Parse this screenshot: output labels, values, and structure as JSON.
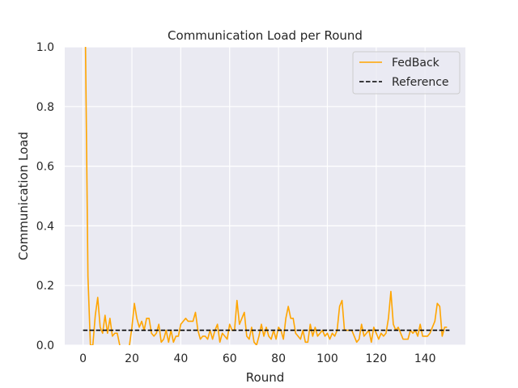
{
  "chart_data": {
    "type": "line",
    "title": "Communication Load per Round",
    "xlabel": "Round",
    "ylabel": "Communication Load",
    "xlim": [
      -7.5,
      156.5
    ],
    "ylim": [
      0,
      1.0
    ],
    "xticks": [
      0,
      20,
      40,
      60,
      80,
      100,
      120,
      140
    ],
    "yticks": [
      0.0,
      0.2,
      0.4,
      0.6,
      0.8,
      1.0
    ],
    "xtick_labels": [
      "0",
      "20",
      "40",
      "60",
      "80",
      "100",
      "120",
      "140"
    ],
    "ytick_labels": [
      "0.0",
      "0.2",
      "0.4",
      "0.6",
      "0.8",
      "1.0"
    ],
    "grid": true,
    "legend_position": "top-right",
    "series": [
      {
        "name": "FedBack",
        "color": "#FFA500",
        "style": "solid",
        "x": [
          1,
          2,
          3,
          4,
          5,
          6,
          7,
          8,
          9,
          10,
          11,
          12,
          13,
          14,
          15,
          16,
          17,
          18,
          19,
          20,
          21,
          22,
          23,
          24,
          25,
          26,
          27,
          28,
          29,
          30,
          31,
          32,
          33,
          34,
          35,
          36,
          37,
          38,
          39,
          40,
          41,
          42,
          43,
          44,
          45,
          46,
          47,
          48,
          49,
          50,
          51,
          52,
          53,
          54,
          55,
          56,
          57,
          58,
          59,
          60,
          61,
          62,
          63,
          64,
          65,
          66,
          67,
          68,
          69,
          70,
          71,
          72,
          73,
          74,
          75,
          76,
          77,
          78,
          79,
          80,
          81,
          82,
          83,
          84,
          85,
          86,
          87,
          88,
          89,
          90,
          91,
          92,
          93,
          94,
          95,
          96,
          97,
          98,
          99,
          100,
          101,
          102,
          103,
          104,
          105,
          106,
          107,
          108,
          109,
          110,
          111,
          112,
          113,
          114,
          115,
          116,
          117,
          118,
          119,
          120,
          121,
          122,
          123,
          124,
          125,
          126,
          127,
          128,
          129,
          130,
          131,
          132,
          133,
          134,
          135,
          136,
          137,
          138,
          139,
          140,
          141,
          142,
          143,
          144,
          145,
          146,
          147,
          148,
          149
        ],
        "values": [
          1.0,
          0.23,
          0.0,
          0.0,
          0.1,
          0.16,
          0.06,
          0.04,
          0.1,
          0.04,
          0.09,
          0.03,
          0.04,
          0.04,
          0.0,
          -0.02,
          -0.01,
          -0.01,
          0.0,
          0.06,
          0.14,
          0.09,
          0.06,
          0.08,
          0.05,
          0.09,
          0.09,
          0.04,
          0.03,
          0.04,
          0.07,
          0.01,
          0.02,
          0.05,
          0.01,
          0.05,
          0.01,
          0.03,
          0.03,
          0.07,
          0.08,
          0.09,
          0.08,
          0.08,
          0.08,
          0.11,
          0.05,
          0.02,
          0.03,
          0.03,
          0.02,
          0.05,
          0.02,
          0.05,
          0.07,
          0.01,
          0.04,
          0.03,
          0.02,
          0.07,
          0.05,
          0.05,
          0.15,
          0.07,
          0.09,
          0.11,
          0.03,
          0.02,
          0.06,
          0.01,
          0.0,
          0.03,
          0.07,
          0.03,
          0.06,
          0.03,
          0.02,
          0.05,
          0.02,
          0.06,
          0.05,
          0.02,
          0.09,
          0.13,
          0.09,
          0.09,
          0.04,
          0.03,
          0.02,
          0.05,
          0.01,
          0.01,
          0.07,
          0.03,
          0.06,
          0.03,
          0.04,
          0.05,
          0.03,
          0.04,
          0.02,
          0.04,
          0.03,
          0.05,
          0.13,
          0.15,
          0.05,
          0.05,
          0.05,
          0.05,
          0.03,
          0.01,
          0.02,
          0.07,
          0.03,
          0.04,
          0.05,
          0.01,
          0.06,
          0.04,
          0.02,
          0.04,
          0.03,
          0.04,
          0.09,
          0.18,
          0.07,
          0.05,
          0.06,
          0.04,
          0.02,
          0.02,
          0.02,
          0.05,
          0.04,
          0.05,
          0.03,
          0.07,
          0.03,
          0.03,
          0.03,
          0.04,
          0.06,
          0.08,
          0.14,
          0.13,
          0.03,
          0.06,
          0.06
        ]
      },
      {
        "name": "Reference",
        "color": "#000000",
        "style": "dashed",
        "x": [
          0,
          150
        ],
        "values": [
          0.05,
          0.05
        ]
      }
    ]
  }
}
